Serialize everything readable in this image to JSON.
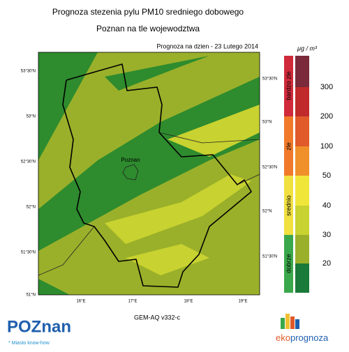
{
  "header": {
    "title": "Prognoza stezenia pylu PM10 sredniego dobowego",
    "subtitle": "Poznan na tle wojewodztwa",
    "date": "Prognoza na dzien -  23 Lutego 2014"
  },
  "map": {
    "lat_labels_left": [
      "53°30'N",
      "53°N",
      "52°30'N",
      "52°N",
      "51°30'N",
      "51°N"
    ],
    "lat_labels_right": [
      "53°30'N",
      "53°N",
      "52°30'N",
      "52°N",
      "51°30'N"
    ],
    "lon_labels": [
      "16°E",
      "17°E",
      "18°E",
      "19°E"
    ],
    "city": "Poznan"
  },
  "legend": {
    "unit": "μg / m³",
    "categories": [
      "bardzo zle",
      "zle",
      "srednio",
      "dobrze"
    ],
    "levels": [
      300,
      200,
      100,
      50,
      40,
      30,
      20
    ]
  },
  "footer": {
    "model": "GEM-AQ v332-c",
    "logo": "POZnan",
    "tagline": "* Miasto know-how",
    "brand_a": "eko",
    "brand_b": "prognoza"
  }
}
